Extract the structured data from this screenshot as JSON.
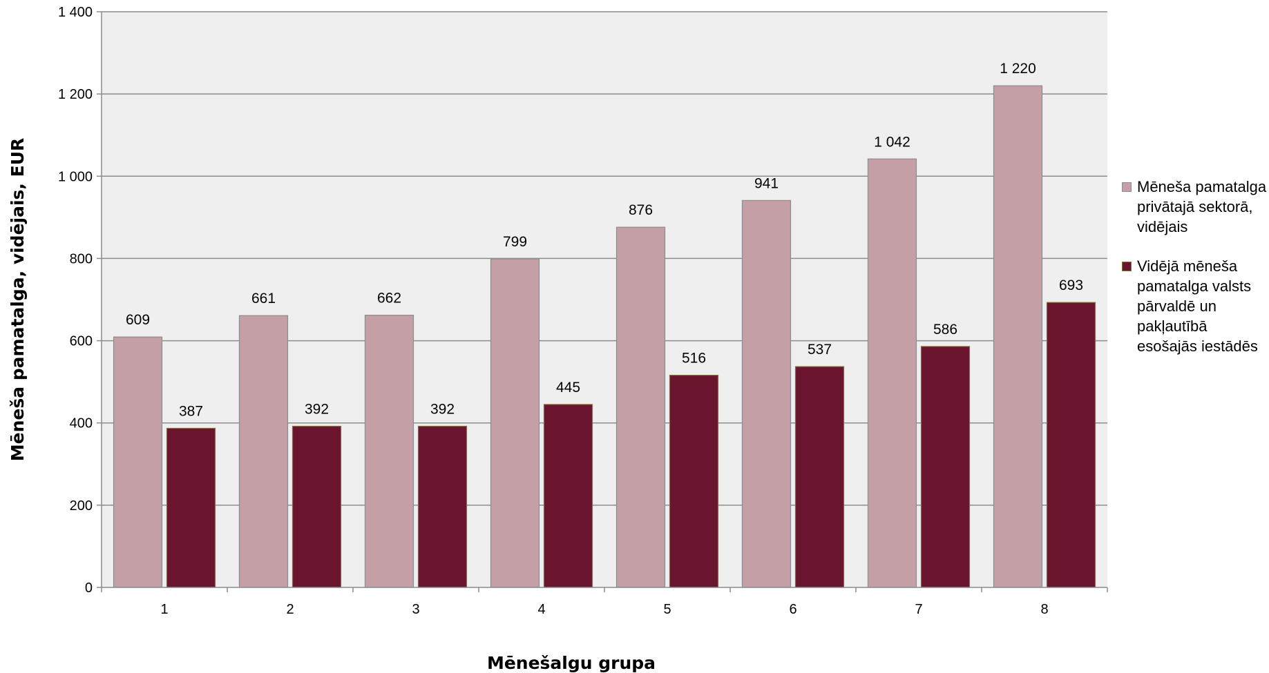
{
  "chart_data": {
    "type": "bar",
    "categories": [
      "1",
      "2",
      "3",
      "4",
      "5",
      "6",
      "7",
      "8"
    ],
    "series": [
      {
        "name": "Mēneša pamatalga privātajā sektorā, vidējais",
        "values": [
          609,
          661,
          662,
          799,
          876,
          941,
          1042,
          1220
        ],
        "labels": [
          "609",
          "661",
          "662",
          "799",
          "876",
          "941",
          "1 042",
          "1 220"
        ],
        "color": "#c49fa6"
      },
      {
        "name": "Vidējā mēneša pamatalga valsts pārvaldē un pakļautībā esošajās iestādēs",
        "values": [
          387,
          392,
          392,
          445,
          516,
          537,
          586,
          693
        ],
        "labels": [
          "387",
          "392",
          "392",
          "445",
          "516",
          "537",
          "586",
          "693"
        ],
        "color": "#6a142e"
      }
    ],
    "xlabel": "Mēnešalgu grupa",
    "ylabel": "Mēneša pamatalga, vidējais, EUR",
    "ylim": [
      0,
      1400
    ],
    "yticks": [
      0,
      200,
      400,
      600,
      800,
      1000,
      1200,
      1400
    ],
    "ytick_labels": [
      "0",
      "200",
      "400",
      "600",
      "800",
      "1 000",
      "1 200",
      "1 400"
    ],
    "grid": true,
    "plot_background": "#efefef",
    "grid_color": "#8c8c8c",
    "bar_border_color": "#7a7a2a",
    "legend_position": "right"
  }
}
